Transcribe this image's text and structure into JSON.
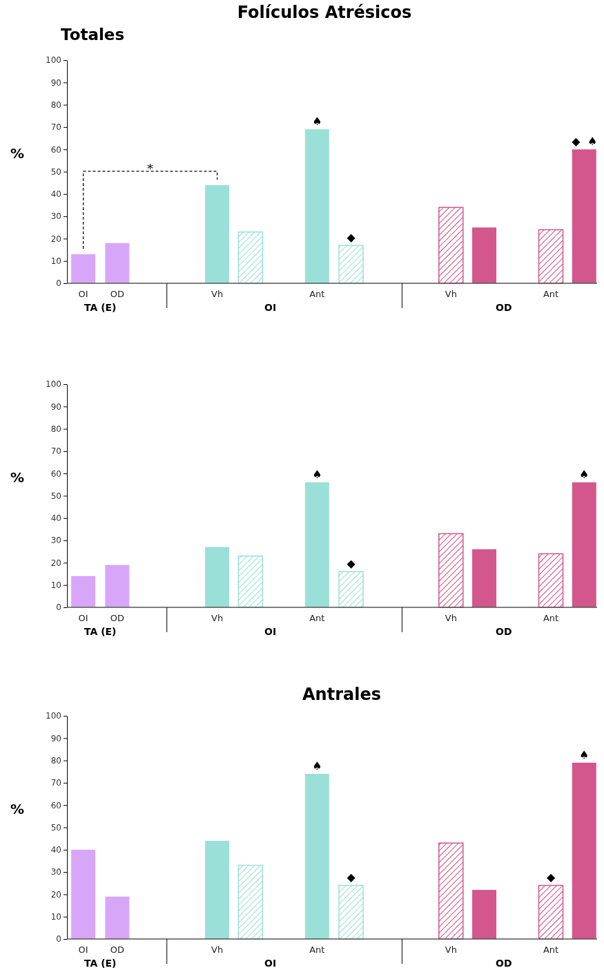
{
  "chart_data": [
    {
      "type": "bar",
      "title": "Folículos Atrésicos",
      "subtitle": "Totales",
      "ylabel": "%",
      "categories": [
        "OI",
        "OD",
        "Vh",
        null,
        "Ant",
        null,
        "Vh",
        null,
        "Ant",
        null
      ],
      "series": [
        {
          "color": "#d8a6f8",
          "values": [
            13,
            18,
            null,
            null,
            null,
            null,
            null,
            null,
            null,
            null
          ]
        },
        {
          "color": "#9be0d8",
          "values": [
            null,
            null,
            44,
            null,
            69,
            null,
            null,
            null,
            null,
            null
          ]
        },
        {
          "color": "#9be0d8",
          "values": [
            null,
            null,
            null,
            23,
            null,
            17,
            null,
            null,
            null,
            null
          ]
        },
        {
          "color": "#d3568c",
          "values": [
            null,
            null,
            null,
            null,
            null,
            null,
            null,
            25,
            null,
            60
          ]
        },
        {
          "color": "#d3568c",
          "values": [
            null,
            null,
            null,
            null,
            null,
            null,
            34,
            null,
            24,
            null
          ]
        }
      ],
      "ylim": [
        0,
        100
      ],
      "yticks": [
        0,
        10,
        20,
        30,
        40,
        50,
        60,
        70,
        80,
        90,
        100
      ],
      "grid": false,
      "annotations": [
        "TA (E)",
        "OI",
        "OD",
        "*",
        {
          "text": "♠",
          "y": 69
        },
        {
          "text": "◆",
          "y": 17
        },
        {
          "text": "◆",
          "y": 60
        },
        {
          "text": "♠",
          "y": 60
        }
      ]
    },
    {
      "type": "bar",
      "ylabel": "%",
      "categories": [
        "OI",
        "OD",
        "Vh",
        null,
        "Ant",
        null,
        "Vh",
        null,
        "Ant",
        null
      ],
      "series": [
        {
          "color": "#d8a6f8",
          "values": [
            14,
            19,
            null,
            null,
            null,
            null,
            null,
            null,
            null,
            null
          ]
        },
        {
          "color": "#9be0d8",
          "values": [
            null,
            null,
            27,
            null,
            56,
            null,
            null,
            null,
            null,
            null
          ]
        },
        {
          "color": "#9be0d8",
          "values": [
            null,
            null,
            null,
            23,
            null,
            16,
            null,
            null,
            null,
            null
          ]
        },
        {
          "color": "#d3568c",
          "values": [
            null,
            null,
            null,
            null,
            null,
            null,
            null,
            26,
            null,
            56
          ]
        },
        {
          "color": "#d3568c",
          "values": [
            null,
            null,
            null,
            null,
            null,
            null,
            33,
            null,
            24,
            null
          ]
        }
      ],
      "ylim": [
        0,
        100
      ],
      "yticks": [
        0,
        10,
        20,
        30,
        40,
        50,
        60,
        70,
        80,
        90,
        100
      ],
      "grid": false,
      "annotations": [
        "TA (E)",
        "OI",
        "OD",
        {
          "text": "♠",
          "y": 56
        },
        {
          "text": "◆",
          "y": 16
        },
        {
          "text": "♠",
          "y": 56
        }
      ]
    },
    {
      "type": "bar",
      "title": "Antrales",
      "ylabel": "%",
      "categories": [
        "OI",
        "OD",
        "Vh",
        null,
        "Ant",
        null,
        "Vh",
        null,
        "Ant",
        null
      ],
      "series": [
        {
          "color": "#d8a6f8",
          "values": [
            40,
            19,
            null,
            null,
            null,
            null,
            null,
            null,
            null,
            null
          ]
        },
        {
          "color": "#9be0d8",
          "values": [
            null,
            null,
            44,
            null,
            74,
            null,
            null,
            null,
            null,
            null
          ]
        },
        {
          "color": "#9be0d8",
          "values": [
            null,
            null,
            null,
            33,
            null,
            24,
            null,
            null,
            null,
            null
          ]
        },
        {
          "color": "#d3568c",
          "values": [
            null,
            null,
            null,
            null,
            null,
            null,
            null,
            22,
            null,
            79
          ]
        },
        {
          "color": "#d3568c",
          "values": [
            null,
            null,
            null,
            null,
            null,
            null,
            43,
            null,
            24,
            null
          ]
        }
      ],
      "ylim": [
        0,
        100
      ],
      "yticks": [
        0,
        10,
        20,
        30,
        40,
        50,
        60,
        70,
        80,
        90,
        100
      ],
      "grid": false,
      "annotations": [
        "TA (E)",
        "OI",
        "OD",
        {
          "text": "♠",
          "y": 74
        },
        {
          "text": "◆",
          "y": 24
        },
        {
          "text": "◆",
          "y": 24
        },
        {
          "text": "♠",
          "y": 79
        }
      ]
    }
  ]
}
